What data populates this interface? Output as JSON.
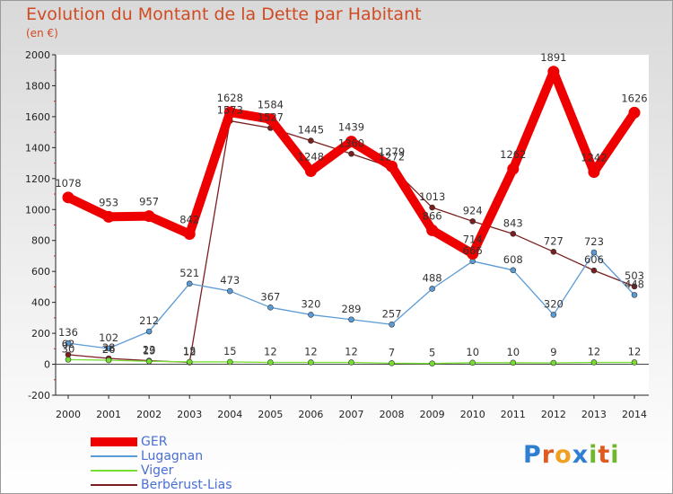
{
  "chart_data": {
    "type": "line",
    "title": "Evolution du Montant de la Dette par Habitant",
    "subtitle": "(en €)",
    "xlabel": "",
    "ylabel": "",
    "ylim": [
      -200,
      2000
    ],
    "yticks": [
      -200,
      0,
      200,
      400,
      600,
      800,
      1000,
      1200,
      1400,
      1600,
      1800,
      2000
    ],
    "x": [
      2000,
      2001,
      2002,
      2003,
      2004,
      2005,
      2006,
      2007,
      2008,
      2009,
      2010,
      2011,
      2012,
      2013,
      2014
    ],
    "grid": false,
    "legend": "bottom-left",
    "series": [
      {
        "name": "GER",
        "color": "#ee0000",
        "width": 10,
        "markers": true,
        "values": [
          1078,
          953,
          957,
          842,
          1628,
          1584,
          1248,
          1439,
          1279,
          866,
          714,
          1262,
          1891,
          1242,
          1626
        ]
      },
      {
        "name": "Lugagnan",
        "color": "#5b9bd5",
        "width": 1.3,
        "markers": true,
        "values": [
          136,
          102,
          212,
          521,
          473,
          367,
          320,
          289,
          257,
          488,
          666,
          608,
          320,
          723,
          448
        ]
      },
      {
        "name": "Viger",
        "color": "#77dd33",
        "width": 1.3,
        "markers": true,
        "values": [
          30,
          26,
          19,
          15,
          15,
          12,
          12,
          12,
          7,
          5,
          10,
          10,
          9,
          12,
          12
        ]
      },
      {
        "name": "Berbérust-Lias",
        "color": "#7a1f1f",
        "width": 1.3,
        "markers": true,
        "values": [
          62,
          38,
          23,
          12,
          1573,
          1527,
          1445,
          1360,
          1272,
          1013,
          924,
          843,
          727,
          606,
          503
        ]
      }
    ]
  },
  "logo": {
    "letters": [
      "P",
      "r",
      "o",
      "x",
      "i",
      "t",
      "i"
    ],
    "colors": [
      "#2e7fd1",
      "#e05a1f",
      "#f0a020",
      "#2e7fd1",
      "#6fb82e",
      "#e05a1f",
      "#6fb82e"
    ]
  }
}
